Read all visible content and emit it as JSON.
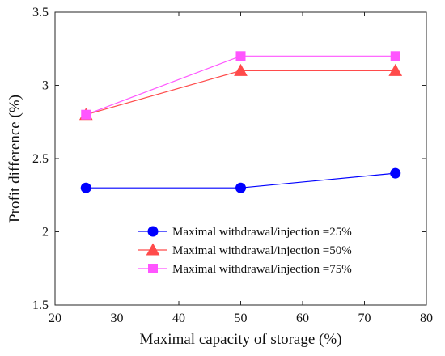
{
  "chart_data": {
    "type": "line",
    "xlabel": "Maximal capacity of storage (%)",
    "ylabel": "Profit difference (%)",
    "xlim": [
      20,
      80
    ],
    "ylim": [
      1.5,
      3.5
    ],
    "xticks": [
      20,
      30,
      40,
      50,
      60,
      70,
      80
    ],
    "yticks": [
      1.5,
      2,
      2.5,
      3,
      3.5
    ],
    "xtick_labels": [
      "20",
      "30",
      "40",
      "50",
      "60",
      "70",
      "80"
    ],
    "ytick_labels": [
      "1.5",
      "2",
      "2.5",
      "3",
      "3.5"
    ],
    "grid": false,
    "legend_position": "lower-right",
    "series": [
      {
        "name": "Maximal withdrawal/injection =25%",
        "x": [
          25,
          50,
          75
        ],
        "y": [
          2.3,
          2.3,
          2.4
        ],
        "color": "#0000ff",
        "marker": "circle"
      },
      {
        "name": "Maximal withdrawal/injection =50%",
        "x": [
          25,
          50,
          75
        ],
        "y": [
          2.8,
          3.1,
          3.1
        ],
        "color": "#ff4b4b",
        "marker": "triangle"
      },
      {
        "name": "Maximal withdrawal/injection =75%",
        "x": [
          25,
          50,
          75
        ],
        "y": [
          2.8,
          3.2,
          3.2
        ],
        "color": "#ff55ff",
        "marker": "square"
      }
    ]
  }
}
